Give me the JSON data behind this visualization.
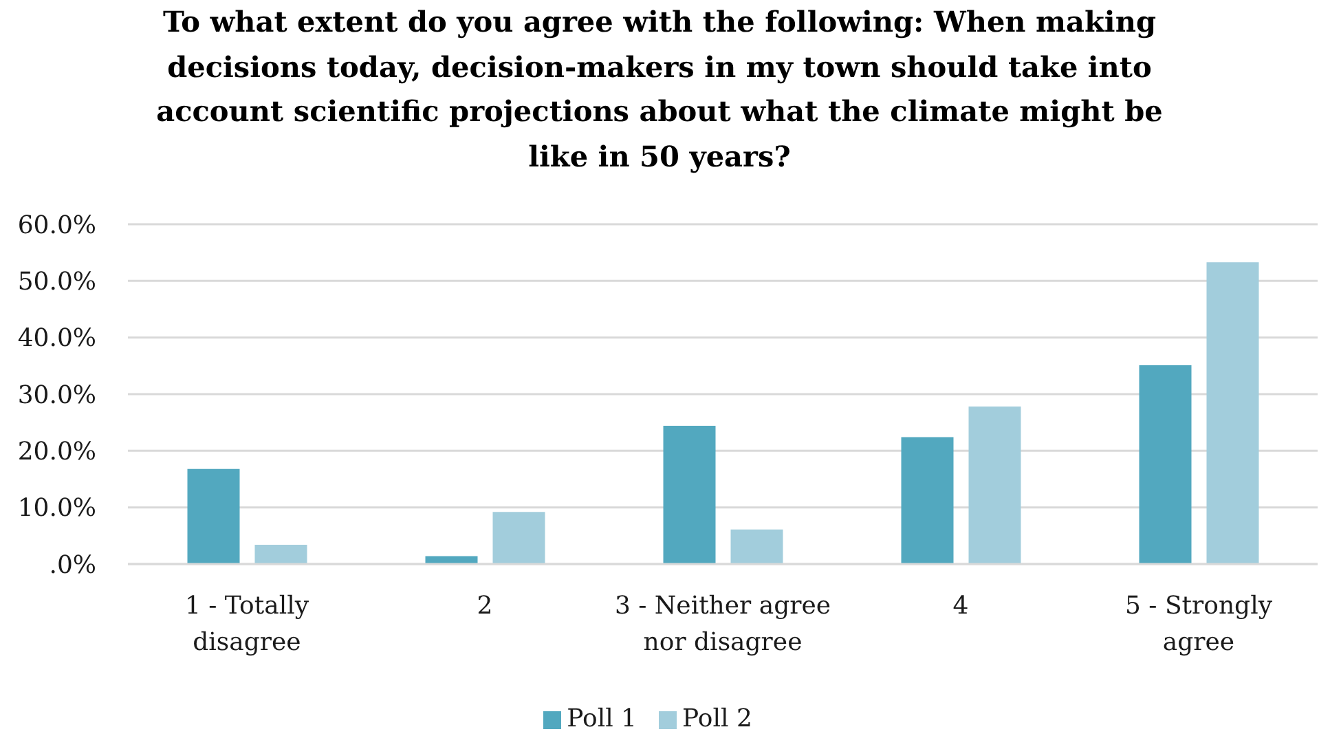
{
  "chart_data": {
    "type": "bar",
    "title": "To what extent do you agree with the following: When making decisions today, decision-makers in my town should take into account scientific projections about what the climate might be like in 50 years?",
    "categories": [
      "1 - Totally disagree",
      "2",
      "3 - Neither agree nor disagree",
      "4",
      "5 - Strongly agree"
    ],
    "series": [
      {
        "name": "Poll 1",
        "color": "#52a8bf",
        "values": [
          16.8,
          1.4,
          24.4,
          22.4,
          35.1
        ]
      },
      {
        "name": "Poll 2",
        "color": "#a2cddc",
        "values": [
          3.4,
          9.2,
          6.1,
          27.8,
          53.3
        ]
      }
    ],
    "ylim": [
      0,
      60
    ],
    "yticks": [
      {
        "value": 0,
        "label": ".0%"
      },
      {
        "value": 10,
        "label": "10.0%"
      },
      {
        "value": 20,
        "label": "20.0%"
      },
      {
        "value": 30,
        "label": "30.0%"
      },
      {
        "value": 40,
        "label": "40.0%"
      },
      {
        "value": 50,
        "label": "50.0%"
      },
      {
        "value": 60,
        "label": "60.0%"
      }
    ],
    "grid": "y",
    "legend": "bottom"
  }
}
